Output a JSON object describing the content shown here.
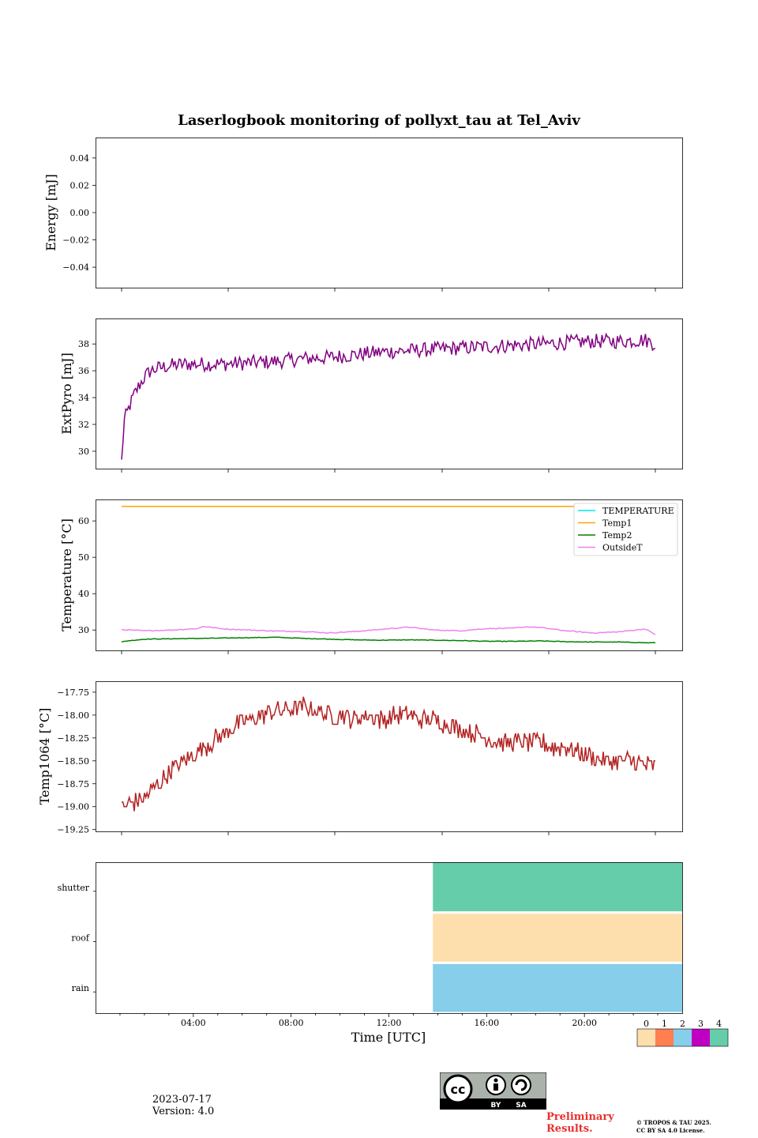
{
  "figure_title": "Laserlogbook monitoring of pollyxt_tau at Tel_Aviv",
  "footer": {
    "date": "2023-07-17",
    "version": "Version: 4.0",
    "preliminary": "Preliminary Results.",
    "copyright_line1": "© TROPOS & TAU 2025.",
    "copyright_line2": "CC BY SA 4.0 License.",
    "license_badge": "CC BY SA"
  },
  "colors": {
    "energy": "#1f77b4",
    "extpyro": "#800080",
    "temperature": "#00e5ee",
    "temp1": "#ffa500",
    "temp2": "#008000",
    "outsideT": "#ee82ee",
    "temp1064": "#b22222",
    "status_0": "#fddead",
    "status_1": "#ff7f50",
    "status_2": "#87ceeb",
    "status_3": "#c000c0",
    "status_4": "#66cdaa"
  },
  "chart_data": [
    {
      "type": "line",
      "panel": "energy",
      "ylabel": "Energy [mJ]",
      "ylim": [
        -0.055,
        0.055
      ],
      "yticks": [
        0.04,
        0.02,
        0.0,
        -0.02,
        -0.04
      ],
      "ytick_labels": [
        "0.04",
        "0.02",
        "0.00",
        "−0.02",
        "−0.04"
      ],
      "series": []
    },
    {
      "type": "line",
      "panel": "extpyro",
      "ylabel": "ExtPyro [mJ]",
      "ylim": [
        28.7,
        39.9
      ],
      "yticks": [
        30,
        32,
        34,
        36,
        38
      ],
      "ytick_labels": [
        "30",
        "32",
        "34",
        "36",
        "38"
      ],
      "series": [
        {
          "name": "ExtPyro",
          "x_hours": [
            0.1,
            0.15,
            0.2,
            0.3,
            0.45,
            0.6,
            0.8,
            1.0,
            1.2,
            1.5,
            2.0,
            2.5,
            3.0,
            4.0,
            5.0,
            6.0,
            7.0,
            8.0,
            9.0,
            10.0,
            11.0,
            12.0,
            13.0,
            14.0,
            15.0,
            16.0,
            17.0,
            18.0,
            19.0,
            20.0,
            20.4
          ],
          "values": [
            29.2,
            30.8,
            32.3,
            32.8,
            33.6,
            34.3,
            35.0,
            35.6,
            36.0,
            36.2,
            36.4,
            36.5,
            36.5,
            36.5,
            36.6,
            36.7,
            36.9,
            37.0,
            37.2,
            37.4,
            37.5,
            37.6,
            37.7,
            37.8,
            37.9,
            38.0,
            38.1,
            38.2,
            38.2,
            38.3,
            38.0
          ]
        }
      ]
    },
    {
      "type": "line",
      "panel": "temperature",
      "ylabel": "Temperature [°C]",
      "ylim": [
        24.4,
        65.9
      ],
      "yticks": [
        30,
        40,
        50,
        60
      ],
      "ytick_labels": [
        "30",
        "40",
        "50",
        "60"
      ],
      "legend": [
        "TEMPERATURE",
        "Temp1",
        "Temp2",
        "OutsideT"
      ],
      "legend_loc": "upper right",
      "series": [
        {
          "name": "TEMPERATURE",
          "x_hours": [],
          "values": []
        },
        {
          "name": "Temp1",
          "x_hours": [
            0.1,
            20.4
          ],
          "values": [
            64.0,
            64.0
          ]
        },
        {
          "name": "Temp2",
          "x_hours": [
            0.1,
            0.3,
            1.0,
            2.0,
            3.0,
            4.0,
            5.0,
            6.0,
            7.0,
            8.0,
            9.0,
            10.0,
            11.0,
            12.0,
            13.0,
            14.0,
            15.0,
            16.0,
            17.0,
            18.0,
            19.0,
            20.0,
            20.4
          ],
          "values": [
            26.7,
            27.0,
            27.5,
            27.6,
            27.7,
            27.8,
            27.9,
            28.0,
            27.7,
            27.5,
            27.3,
            27.2,
            27.3,
            27.2,
            27.1,
            26.9,
            26.9,
            27.0,
            26.8,
            26.7,
            26.7,
            26.5,
            26.5
          ]
        },
        {
          "name": "OutsideT",
          "x_hours": [
            0.1,
            1.0,
            2.0,
            3.0,
            3.2,
            4.0,
            5.0,
            6.0,
            7.0,
            8.0,
            9.0,
            10.0,
            11.0,
            12.0,
            13.0,
            14.0,
            15.0,
            15.5,
            16.0,
            17.0,
            18.0,
            19.0,
            20.0,
            20.4
          ],
          "values": [
            30.1,
            29.8,
            30.0,
            30.4,
            31.0,
            30.3,
            30.0,
            29.7,
            29.6,
            29.2,
            29.6,
            30.2,
            30.8,
            30.0,
            29.8,
            30.4,
            30.5,
            30.9,
            30.7,
            29.8,
            29.2,
            29.5,
            30.3,
            28.8
          ]
        }
      ]
    },
    {
      "type": "line",
      "panel": "temp1064",
      "ylabel": "Temp1064 [°C]",
      "ylim": [
        -19.27,
        -17.63
      ],
      "yticks": [
        -17.75,
        -18.0,
        -18.25,
        -18.5,
        -18.75,
        -19.0,
        -19.25
      ],
      "ytick_labels": [
        "−17.75",
        "−18.00",
        "−18.25",
        "−18.50",
        "−18.75",
        "−19.00",
        "−19.25"
      ],
      "series": [
        {
          "name": "Temp1064",
          "x_hours": [
            0.1,
            0.5,
            1.0,
            1.5,
            2.0,
            2.5,
            3.0,
            3.5,
            4.0,
            4.5,
            5.0,
            5.5,
            6.0,
            6.5,
            7.0,
            7.5,
            8.0,
            8.5,
            9.0,
            9.5,
            10.0,
            10.5,
            11.0,
            11.5,
            12.0,
            12.5,
            13.0,
            13.5,
            14.0,
            14.5,
            15.0,
            15.5,
            16.0,
            16.5,
            17.0,
            17.5,
            18.0,
            18.5,
            19.0,
            19.5,
            20.0,
            20.4
          ],
          "values": [
            -19.0,
            -18.95,
            -18.9,
            -18.75,
            -18.6,
            -18.5,
            -18.4,
            -18.3,
            -18.2,
            -18.1,
            -18.05,
            -18.0,
            -17.95,
            -17.95,
            -17.9,
            -17.95,
            -18.0,
            -18.0,
            -18.05,
            -18.0,
            -18.05,
            -18.0,
            -18.0,
            -18.05,
            -18.05,
            -18.1,
            -18.15,
            -18.2,
            -18.25,
            -18.3,
            -18.3,
            -18.3,
            -18.3,
            -18.35,
            -18.35,
            -18.4,
            -18.45,
            -18.5,
            -18.5,
            -18.5,
            -18.55,
            -18.55
          ]
        }
      ]
    },
    {
      "type": "heatmap",
      "panel": "status",
      "xlabel": "Time [UTC]",
      "xlim_hours": [
        0,
        24
      ],
      "xticks_hours": [
        4,
        8,
        12,
        16,
        20
      ],
      "xtick_labels": [
        "04:00",
        "08:00",
        "12:00",
        "16:00",
        "20:00"
      ],
      "rows": [
        "shutter",
        "roof",
        "rain"
      ],
      "blocks": [
        {
          "row": "shutter",
          "start_hour": 13.8,
          "end_hour": 24,
          "status": 4
        },
        {
          "row": "roof",
          "start_hour": 13.8,
          "end_hour": 24,
          "status": 0
        },
        {
          "row": "rain",
          "start_hour": 13.8,
          "end_hour": 24,
          "status": 2
        }
      ],
      "colorbar_labels": [
        "0",
        "1",
        "2",
        "3",
        "4"
      ]
    }
  ]
}
